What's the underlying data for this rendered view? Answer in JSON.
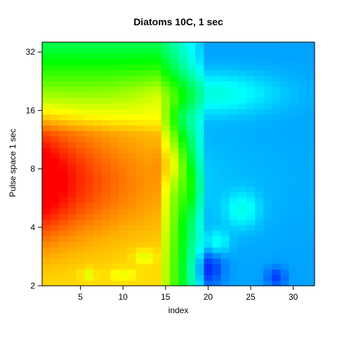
{
  "chart_data": {
    "type": "heatmap",
    "title": "Diatoms 10C, 1 sec",
    "xlabel": "index",
    "ylabel": "Pulse space 1 sec",
    "xlim": [
      0.5,
      32.5
    ],
    "ylim": [
      2,
      36
    ],
    "y_scale": "log2",
    "x_ticks": [
      5,
      10,
      15,
      20,
      25,
      30
    ],
    "y_ticks": [
      2,
      4,
      8,
      16,
      32
    ],
    "colormap": "rainbow (red = high, blue = low)",
    "colors": {
      "high": "#ff0000",
      "mid": "#00ff00",
      "low": "#0000ff"
    },
    "grid": false
  }
}
